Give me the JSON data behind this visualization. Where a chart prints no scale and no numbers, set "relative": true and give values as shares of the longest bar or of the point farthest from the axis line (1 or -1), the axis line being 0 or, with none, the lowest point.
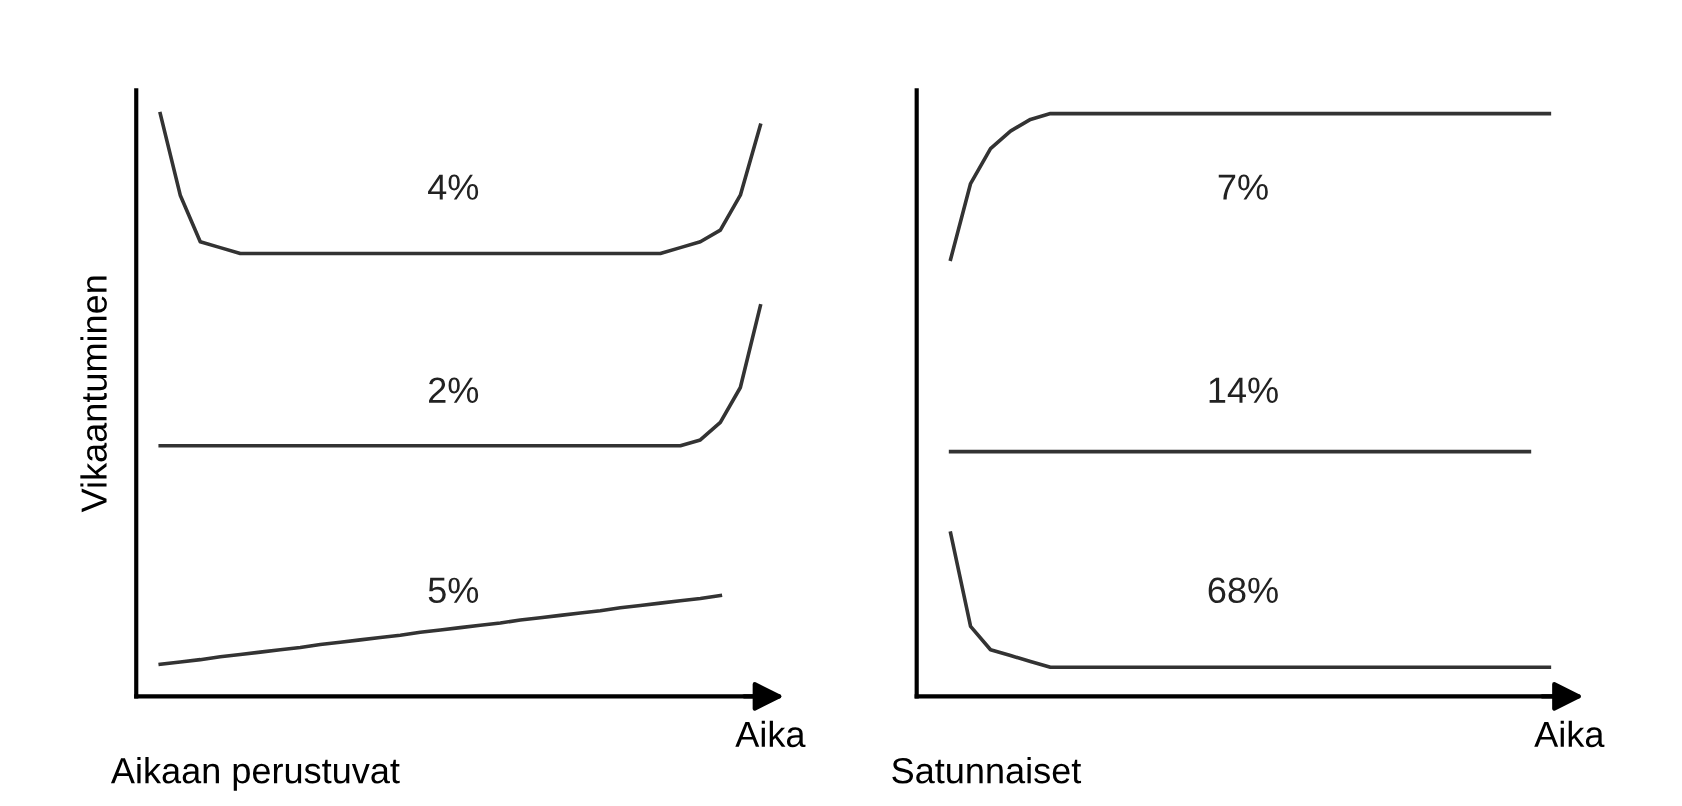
{
  "chart_data": [
    {
      "type": "line",
      "relative": true,
      "title": "Aikaan perustuvat",
      "xlabel": "Aika",
      "ylabel": "Vikaantuminen",
      "legend": false,
      "categories": [
        null,
        null,
        null,
        null,
        null,
        null,
        null,
        null,
        null,
        null,
        null,
        null,
        null,
        null,
        null,
        null,
        null,
        null,
        null,
        null,
        null,
        null,
        null,
        null,
        null,
        null,
        null,
        null,
        null,
        null,
        null
      ],
      "series": [
        {
          "color": "#333333",
          "values": [
            1.0,
            0.86,
            0.78,
            0.77,
            0.76,
            0.76,
            0.76,
            0.76,
            0.76,
            0.76,
            0.76,
            0.76,
            0.76,
            0.76,
            0.76,
            0.76,
            0.76,
            0.76,
            0.76,
            0.76,
            0.76,
            0.76,
            0.76,
            0.76,
            0.76,
            0.76,
            0.77,
            0.78,
            0.8,
            0.86,
            0.98
          ]
        },
        {
          "color": "#333333",
          "values": [
            0.43,
            0.43,
            0.43,
            0.43,
            0.43,
            0.43,
            0.43,
            0.43,
            0.43,
            0.43,
            0.43,
            0.43,
            0.43,
            0.43,
            0.43,
            0.43,
            0.43,
            0.43,
            0.43,
            0.43,
            0.43,
            0.43,
            0.43,
            0.43,
            0.43,
            0.43,
            0.43,
            0.44,
            0.47,
            0.53,
            0.67
          ]
        },
        {
          "color": "#333333",
          "values": [
            0.055,
            0.059,
            0.063,
            0.068,
            0.072,
            0.076,
            0.08,
            0.084,
            0.089,
            0.093,
            0.097,
            0.101,
            0.105,
            0.11,
            0.114,
            0.118,
            0.122,
            0.126,
            0.131,
            0.135,
            0.139,
            0.143,
            0.147,
            0.152,
            0.156,
            0.16,
            0.164,
            0.168,
            0.173,
            null,
            null
          ]
        }
      ],
      "annotations": [
        "4%",
        "2%",
        "5%"
      ]
    },
    {
      "type": "line",
      "relative": true,
      "title": "Satunnaiset",
      "xlabel": "Aika",
      "legend": false,
      "categories": [
        null,
        null,
        null,
        null,
        null,
        null,
        null,
        null,
        null,
        null,
        null,
        null,
        null,
        null,
        null,
        null,
        null,
        null,
        null,
        null,
        null,
        null,
        null,
        null,
        null,
        null,
        null,
        null,
        null,
        null,
        null
      ],
      "series": [
        {
          "color": "#333333",
          "values": [
            0.75,
            0.88,
            0.94,
            0.97,
            0.99,
            1.0,
            1.0,
            1.0,
            1.0,
            1.0,
            1.0,
            1.0,
            1.0,
            1.0,
            1.0,
            1.0,
            1.0,
            1.0,
            1.0,
            1.0,
            1.0,
            1.0,
            1.0,
            1.0,
            1.0,
            1.0,
            1.0,
            1.0,
            1.0,
            1.0,
            1.0
          ]
        },
        {
          "color": "#333333",
          "values": [
            0.42,
            0.42,
            0.42,
            0.42,
            0.42,
            0.42,
            0.42,
            0.42,
            0.42,
            0.42,
            0.42,
            0.42,
            0.42,
            0.42,
            0.42,
            0.42,
            0.42,
            0.42,
            0.42,
            0.42,
            0.42,
            0.42,
            0.42,
            0.42,
            0.42,
            0.42,
            0.42,
            0.42,
            0.42,
            0.42,
            null
          ]
        },
        {
          "color": "#333333",
          "values": [
            0.28,
            0.12,
            0.08,
            0.07,
            0.06,
            0.05,
            0.05,
            0.05,
            0.05,
            0.05,
            0.05,
            0.05,
            0.05,
            0.05,
            0.05,
            0.05,
            0.05,
            0.05,
            0.05,
            0.05,
            0.05,
            0.05,
            0.05,
            0.05,
            0.05,
            0.05,
            0.05,
            0.05,
            0.05,
            0.05,
            0.05
          ]
        }
      ],
      "annotations": [
        "7%",
        "14%",
        "68%"
      ]
    }
  ]
}
